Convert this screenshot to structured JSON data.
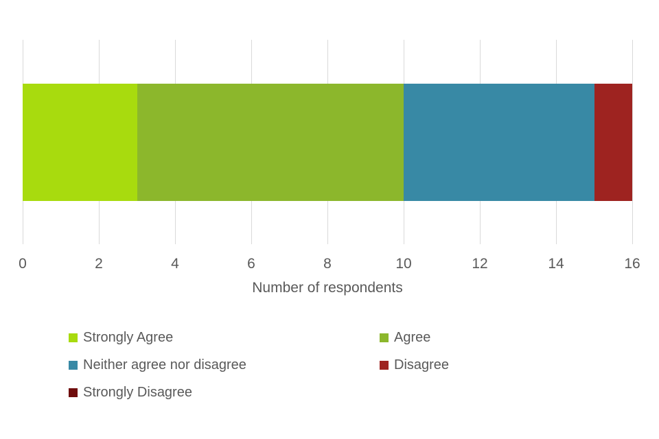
{
  "chart_data": {
    "type": "bar",
    "orientation": "horizontal",
    "stacked": true,
    "xlabel": "Number of respondents",
    "xlim": [
      0,
      16
    ],
    "x_ticks": [
      0,
      2,
      4,
      6,
      8,
      10,
      12,
      14,
      16
    ],
    "grid": true,
    "legend_position": "bottom",
    "series": [
      {
        "name": "Strongly Agree",
        "value": 3,
        "color": "#A8DB0E"
      },
      {
        "name": "Agree",
        "value": 7,
        "color": "#8CB72C"
      },
      {
        "name": "Neither agree nor disagree",
        "value": 5,
        "color": "#3889A5"
      },
      {
        "name": "Disagree",
        "value": 1,
        "color": "#9E2320"
      },
      {
        "name": "Strongly Disagree",
        "value": 0,
        "color": "#6F0D0D"
      }
    ]
  },
  "colors": {
    "text": "#595959",
    "gridline": "#D9D9D9",
    "background": "#FFFFFF"
  }
}
